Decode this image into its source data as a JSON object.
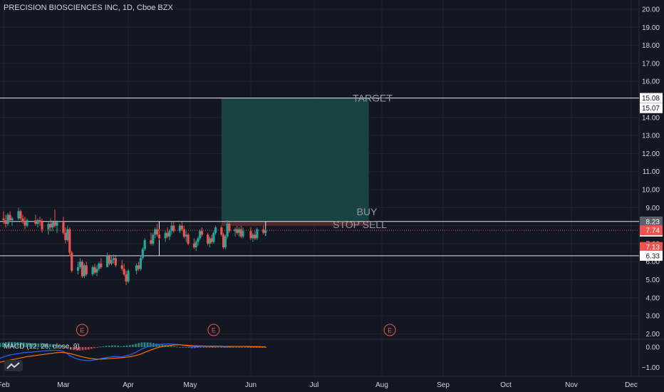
{
  "chart_title": "PRECISION BIOSCIENCES INC, 1D, Cboe BZX",
  "colors": {
    "background": "#131722",
    "up": "#26a69a",
    "down": "#ef5350",
    "grid": "#1e222d",
    "text": "#d1d4dc",
    "line_white": "#e0e3eb",
    "target_zone": "#1b4a48",
    "stop_zone": "#5a2a2e"
  },
  "chart_data": {
    "type": "candlestick",
    "title": "PRECISION BIOSCIENCES INC, 1D, Cboe BZX",
    "y_axis_ticks": [
      "20.00",
      "19.00",
      "18.00",
      "17.00",
      "16.00",
      "15.00",
      "14.00",
      "13.00",
      "12.00",
      "11.00",
      "10.00",
      "9.00",
      "8.00",
      "7.00",
      "6.00",
      "5.00",
      "4.00",
      "3.00",
      "2.00"
    ],
    "x_axis_ticks": [
      "Feb",
      "Mar",
      "Apr",
      "May",
      "Jun",
      "Jul",
      "Aug",
      "Sep",
      "Oct",
      "Nov",
      "Dec"
    ],
    "grid": true,
    "candles": [
      {
        "d": "Feb 01",
        "o": 8.4,
        "h": 8.8,
        "l": 8.1,
        "c": 8.3
      },
      {
        "d": "Feb 02",
        "o": 8.3,
        "h": 8.6,
        "l": 7.9,
        "c": 8.1
      },
      {
        "d": "Feb 03",
        "o": 8.1,
        "h": 8.7,
        "l": 8.0,
        "c": 8.6
      },
      {
        "d": "Feb 04",
        "o": 8.6,
        "h": 8.8,
        "l": 8.2,
        "c": 8.3
      },
      {
        "d": "Feb 05",
        "o": 8.3,
        "h": 8.5,
        "l": 8.0,
        "c": 8.4
      },
      {
        "d": "Feb 08",
        "o": 8.4,
        "h": 9.0,
        "l": 8.3,
        "c": 8.8
      },
      {
        "d": "Feb 09",
        "o": 8.8,
        "h": 8.9,
        "l": 8.3,
        "c": 8.4
      },
      {
        "d": "Feb 10",
        "o": 8.4,
        "h": 8.6,
        "l": 8.1,
        "c": 8.2
      },
      {
        "d": "Feb 11",
        "o": 8.2,
        "h": 8.5,
        "l": 7.8,
        "c": 8.0
      },
      {
        "d": "Feb 12",
        "o": 8.0,
        "h": 8.4,
        "l": 7.9,
        "c": 8.3
      },
      {
        "d": "Feb 16",
        "o": 8.3,
        "h": 8.6,
        "l": 8.0,
        "c": 8.1
      },
      {
        "d": "Feb 17",
        "o": 8.1,
        "h": 8.4,
        "l": 7.9,
        "c": 8.3
      },
      {
        "d": "Feb 18",
        "o": 8.3,
        "h": 8.5,
        "l": 8.0,
        "c": 8.2
      },
      {
        "d": "Feb 19",
        "o": 8.2,
        "h": 8.4,
        "l": 7.6,
        "c": 7.8
      },
      {
        "d": "Feb 22",
        "o": 7.8,
        "h": 8.2,
        "l": 7.5,
        "c": 8.1
      },
      {
        "d": "Feb 23",
        "o": 8.1,
        "h": 8.4,
        "l": 7.7,
        "c": 7.9
      },
      {
        "d": "Feb 24",
        "o": 7.9,
        "h": 8.3,
        "l": 7.7,
        "c": 8.2
      },
      {
        "d": "Feb 25",
        "o": 8.2,
        "h": 8.9,
        "l": 7.9,
        "c": 8.0
      },
      {
        "d": "Feb 26",
        "o": 8.0,
        "h": 8.3,
        "l": 7.6,
        "c": 8.2
      },
      {
        "d": "Mar 01",
        "o": 8.2,
        "h": 8.5,
        "l": 7.5,
        "c": 7.6
      },
      {
        "d": "Mar 02",
        "o": 7.6,
        "h": 7.9,
        "l": 7.0,
        "c": 7.2
      },
      {
        "d": "Mar 03",
        "o": 7.2,
        "h": 8.0,
        "l": 7.1,
        "c": 7.8
      },
      {
        "d": "Mar 04",
        "o": 7.8,
        "h": 7.9,
        "l": 6.3,
        "c": 6.5
      },
      {
        "d": "Mar 05",
        "o": 6.5,
        "h": 6.6,
        "l": 5.4,
        "c": 5.5
      },
      {
        "d": "Mar 08",
        "o": 5.5,
        "h": 6.0,
        "l": 5.3,
        "c": 5.7
      },
      {
        "d": "Mar 09",
        "o": 5.7,
        "h": 6.2,
        "l": 5.6,
        "c": 6.0
      },
      {
        "d": "Mar 10",
        "o": 6.0,
        "h": 6.1,
        "l": 5.1,
        "c": 5.2
      },
      {
        "d": "Mar 11",
        "o": 5.2,
        "h": 5.9,
        "l": 5.1,
        "c": 5.8
      },
      {
        "d": "Mar 12",
        "o": 5.8,
        "h": 6.0,
        "l": 5.2,
        "c": 5.3
      },
      {
        "d": "Mar 15",
        "o": 5.3,
        "h": 5.8,
        "l": 5.2,
        "c": 5.7
      },
      {
        "d": "Mar 16",
        "o": 5.7,
        "h": 5.9,
        "l": 5.3,
        "c": 5.4
      },
      {
        "d": "Mar 17",
        "o": 5.4,
        "h": 5.8,
        "l": 5.2,
        "c": 5.6
      },
      {
        "d": "Mar 18",
        "o": 5.6,
        "h": 6.0,
        "l": 5.5,
        "c": 5.9
      },
      {
        "d": "Mar 19",
        "o": 5.9,
        "h": 6.2,
        "l": 5.6,
        "c": 5.7
      },
      {
        "d": "Mar 22",
        "o": 5.7,
        "h": 6.5,
        "l": 5.7,
        "c": 6.3
      },
      {
        "d": "Mar 23",
        "o": 6.3,
        "h": 6.4,
        "l": 5.8,
        "c": 5.9
      },
      {
        "d": "Mar 24",
        "o": 5.9,
        "h": 6.3,
        "l": 5.8,
        "c": 6.1
      },
      {
        "d": "Mar 25",
        "o": 6.1,
        "h": 6.4,
        "l": 5.9,
        "c": 6.2
      },
      {
        "d": "Mar 26",
        "o": 6.2,
        "h": 6.3,
        "l": 5.7,
        "c": 5.8
      },
      {
        "d": "Mar 29",
        "o": 5.8,
        "h": 6.1,
        "l": 5.5,
        "c": 5.6
      },
      {
        "d": "Mar 30",
        "o": 5.6,
        "h": 5.9,
        "l": 5.2,
        "c": 5.3
      },
      {
        "d": "Mar 31",
        "o": 5.3,
        "h": 5.5,
        "l": 4.7,
        "c": 4.9
      },
      {
        "d": "Apr 01",
        "o": 4.9,
        "h": 5.6,
        "l": 4.8,
        "c": 5.5
      },
      {
        "d": "Apr 05",
        "o": 5.5,
        "h": 5.9,
        "l": 5.3,
        "c": 5.8
      },
      {
        "d": "Apr 06",
        "o": 5.8,
        "h": 6.0,
        "l": 5.5,
        "c": 5.6
      },
      {
        "d": "Apr 07",
        "o": 5.6,
        "h": 6.3,
        "l": 5.5,
        "c": 6.2
      },
      {
        "d": "Apr 08",
        "o": 6.2,
        "h": 6.8,
        "l": 6.1,
        "c": 6.7
      },
      {
        "d": "Apr 09",
        "o": 6.7,
        "h": 7.3,
        "l": 6.6,
        "c": 7.2
      },
      {
        "d": "Apr 12",
        "o": 7.2,
        "h": 7.6,
        "l": 6.9,
        "c": 7.0
      },
      {
        "d": "Apr 13",
        "o": 7.0,
        "h": 7.6,
        "l": 6.9,
        "c": 7.5
      },
      {
        "d": "Apr 14",
        "o": 7.5,
        "h": 7.9,
        "l": 7.3,
        "c": 7.8
      },
      {
        "d": "Apr 15",
        "o": 7.8,
        "h": 8.1,
        "l": 7.4,
        "c": 7.5
      },
      {
        "d": "Apr 16",
        "o": 7.5,
        "h": 7.8,
        "l": 7.2,
        "c": 7.3
      },
      {
        "d": "Apr 19",
        "o": 7.3,
        "h": 7.7,
        "l": 7.1,
        "c": 7.6
      },
      {
        "d": "Apr 20",
        "o": 7.6,
        "h": 7.9,
        "l": 7.3,
        "c": 7.4
      },
      {
        "d": "Apr 21",
        "o": 7.4,
        "h": 7.8,
        "l": 7.2,
        "c": 7.7
      },
      {
        "d": "Apr 22",
        "o": 7.7,
        "h": 8.2,
        "l": 7.5,
        "c": 8.0
      },
      {
        "d": "Apr 23",
        "o": 8.0,
        "h": 8.2,
        "l": 7.6,
        "c": 7.7
      },
      {
        "d": "Apr 26",
        "o": 7.7,
        "h": 8.1,
        "l": 7.6,
        "c": 8.0
      },
      {
        "d": "Apr 27",
        "o": 8.0,
        "h": 8.2,
        "l": 7.7,
        "c": 7.8
      },
      {
        "d": "Apr 28",
        "o": 7.8,
        "h": 8.0,
        "l": 7.3,
        "c": 7.4
      },
      {
        "d": "Apr 29",
        "o": 7.4,
        "h": 7.7,
        "l": 7.1,
        "c": 7.5
      },
      {
        "d": "Apr 30",
        "o": 7.5,
        "h": 7.6,
        "l": 6.9,
        "c": 7.0
      },
      {
        "d": "May 03",
        "o": 7.0,
        "h": 7.3,
        "l": 6.7,
        "c": 6.8
      },
      {
        "d": "May 04",
        "o": 6.8,
        "h": 7.2,
        "l": 6.6,
        "c": 7.1
      },
      {
        "d": "May 05",
        "o": 7.1,
        "h": 7.4,
        "l": 6.9,
        "c": 7.3
      },
      {
        "d": "May 06",
        "o": 7.3,
        "h": 7.8,
        "l": 7.2,
        "c": 7.7
      },
      {
        "d": "May 07",
        "o": 7.7,
        "h": 7.9,
        "l": 7.4,
        "c": 7.5
      },
      {
        "d": "May 10",
        "o": 7.5,
        "h": 7.6,
        "l": 6.9,
        "c": 7.0
      },
      {
        "d": "May 11",
        "o": 7.0,
        "h": 7.4,
        "l": 6.8,
        "c": 7.3
      },
      {
        "d": "May 12",
        "o": 7.3,
        "h": 7.5,
        "l": 7.0,
        "c": 7.1
      },
      {
        "d": "May 13",
        "o": 7.1,
        "h": 7.7,
        "l": 7.0,
        "c": 7.6
      },
      {
        "d": "May 14",
        "o": 7.6,
        "h": 8.0,
        "l": 7.5,
        "c": 7.9
      },
      {
        "d": "May 17",
        "o": 7.9,
        "h": 8.0,
        "l": 7.4,
        "c": 7.5
      },
      {
        "d": "May 18",
        "o": 7.5,
        "h": 7.6,
        "l": 6.7,
        "c": 6.8
      },
      {
        "d": "May 19",
        "o": 6.8,
        "h": 7.5,
        "l": 6.7,
        "c": 7.4
      },
      {
        "d": "May 20",
        "o": 7.4,
        "h": 8.3,
        "l": 7.3,
        "c": 8.1
      },
      {
        "d": "May 21",
        "o": 8.1,
        "h": 8.2,
        "l": 7.6,
        "c": 7.7
      },
      {
        "d": "May 24",
        "o": 7.7,
        "h": 7.9,
        "l": 7.4,
        "c": 7.8
      },
      {
        "d": "May 25",
        "o": 7.8,
        "h": 8.0,
        "l": 7.5,
        "c": 7.6
      },
      {
        "d": "May 26",
        "o": 7.6,
        "h": 7.9,
        "l": 7.4,
        "c": 7.8
      },
      {
        "d": "May 27",
        "o": 7.8,
        "h": 8.0,
        "l": 7.3,
        "c": 7.4
      },
      {
        "d": "May 28",
        "o": 7.4,
        "h": 7.9,
        "l": 7.3,
        "c": 7.7
      },
      {
        "d": "Jun 01",
        "o": 7.7,
        "h": 7.9,
        "l": 7.2,
        "c": 7.3
      },
      {
        "d": "Jun 02",
        "o": 7.3,
        "h": 7.6,
        "l": 7.1,
        "c": 7.5
      },
      {
        "d": "Jun 03",
        "o": 7.5,
        "h": 7.7,
        "l": 7.2,
        "c": 7.3
      },
      {
        "d": "Jun 04",
        "o": 7.3,
        "h": 7.9,
        "l": 7.2,
        "c": 7.8
      },
      {
        "d": "Jun 07",
        "o": 7.8,
        "h": 8.0,
        "l": 7.5,
        "c": 7.6
      },
      {
        "d": "Jun 08",
        "o": 7.6,
        "h": 7.8,
        "l": 7.5,
        "c": 7.74
      }
    ],
    "horizontal_lines": [
      {
        "price": 15.08,
        "label": "15.08"
      },
      {
        "price": 8.23,
        "label": "8.23"
      },
      {
        "price": 6.33,
        "label": "6.33"
      }
    ],
    "price_tags": [
      {
        "price": 15.08,
        "label": "15.08",
        "style": "white"
      },
      {
        "price": 15.07,
        "label": "15.07",
        "style": "white"
      },
      {
        "price": 8.23,
        "label": "8.23",
        "style": "grey"
      },
      {
        "price": 7.99,
        "label": "7.99",
        "style": "white"
      },
      {
        "price": 7.74,
        "label": "7.74",
        "style": "red"
      },
      {
        "price": 7.13,
        "label": "7.13",
        "style": "red"
      },
      {
        "price": 6.33,
        "label": "6.33",
        "style": "white"
      }
    ],
    "current_price": 7.74,
    "range_box": {
      "top": 8.23,
      "bottom": 6.33,
      "from": "Apr 16",
      "to": "Jun 08"
    },
    "position": {
      "entry": 8.23,
      "target": 15.08,
      "stop": 7.99,
      "from": "May 17",
      "to": "Jul 26",
      "labels": {
        "target": "TARGET",
        "buy": "BUY",
        "stop": "STOP SELL"
      }
    },
    "earnings_markers": [
      {
        "date": "Mar 10",
        "label": "E"
      },
      {
        "date": "May 13",
        "label": "E"
      },
      {
        "date": "Aug 05",
        "label": "E"
      }
    ],
    "macd": {
      "label": "MACD (12, 26, close, 9)",
      "y_ticks": [
        "0.00",
        "−1.00"
      ],
      "ylim": [
        -1.45,
        0.35
      ],
      "macd_line": [
        -0.55,
        -0.5,
        -0.45,
        -0.4,
        -0.38,
        -0.35,
        -0.33,
        -0.3,
        -0.28,
        -0.27,
        -0.26,
        -0.25,
        -0.23,
        -0.22,
        -0.2,
        -0.19,
        -0.18,
        -0.17,
        -0.16,
        -0.16,
        -0.18,
        -0.2,
        -0.26,
        -0.35,
        -0.45,
        -0.52,
        -0.58,
        -0.62,
        -0.65,
        -0.66,
        -0.67,
        -0.66,
        -0.64,
        -0.62,
        -0.58,
        -0.55,
        -0.52,
        -0.5,
        -0.48,
        -0.47,
        -0.47,
        -0.49,
        -0.46,
        -0.42,
        -0.38,
        -0.33,
        -0.26,
        -0.18,
        -0.1,
        -0.04,
        0.02,
        0.07,
        0.1,
        0.12,
        0.13,
        0.14,
        0.15,
        0.16,
        0.15,
        0.14,
        0.13,
        0.11,
        0.08,
        0.06,
        0.04,
        0.02,
        0.01,
        0.02,
        0.04,
        0.04,
        0.03,
        0.03,
        0.02,
        0.03,
        0.04,
        0.03,
        0.0,
        0.0,
        0.02,
        0.03,
        0.03,
        0.03,
        0.03,
        0.03,
        0.02,
        0.01,
        0.01,
        0.0,
        0.01,
        0.0,
        0.0
      ],
      "signal_line": [
        -0.75,
        -0.72,
        -0.69,
        -0.66,
        -0.63,
        -0.6,
        -0.57,
        -0.54,
        -0.51,
        -0.48,
        -0.46,
        -0.44,
        -0.42,
        -0.4,
        -0.38,
        -0.36,
        -0.34,
        -0.32,
        -0.3,
        -0.28,
        -0.27,
        -0.27,
        -0.28,
        -0.3,
        -0.33,
        -0.37,
        -0.41,
        -0.45,
        -0.49,
        -0.52,
        -0.55,
        -0.57,
        -0.59,
        -0.6,
        -0.6,
        -0.59,
        -0.58,
        -0.57,
        -0.56,
        -0.55,
        -0.54,
        -0.53,
        -0.52,
        -0.5,
        -0.48,
        -0.45,
        -0.42,
        -0.38,
        -0.33,
        -0.27,
        -0.21,
        -0.15,
        -0.1,
        -0.05,
        -0.01,
        0.02,
        0.05,
        0.07,
        0.09,
        0.1,
        0.11,
        0.11,
        0.1,
        0.09,
        0.08,
        0.07,
        0.06,
        0.05,
        0.05,
        0.05,
        0.04,
        0.04,
        0.04,
        0.04,
        0.04,
        0.04,
        0.03,
        0.03,
        0.03,
        0.03,
        0.03,
        0.03,
        0.03,
        0.03,
        0.03,
        0.02,
        0.02,
        0.02,
        0.02,
        0.01,
        0.01
      ]
    }
  }
}
